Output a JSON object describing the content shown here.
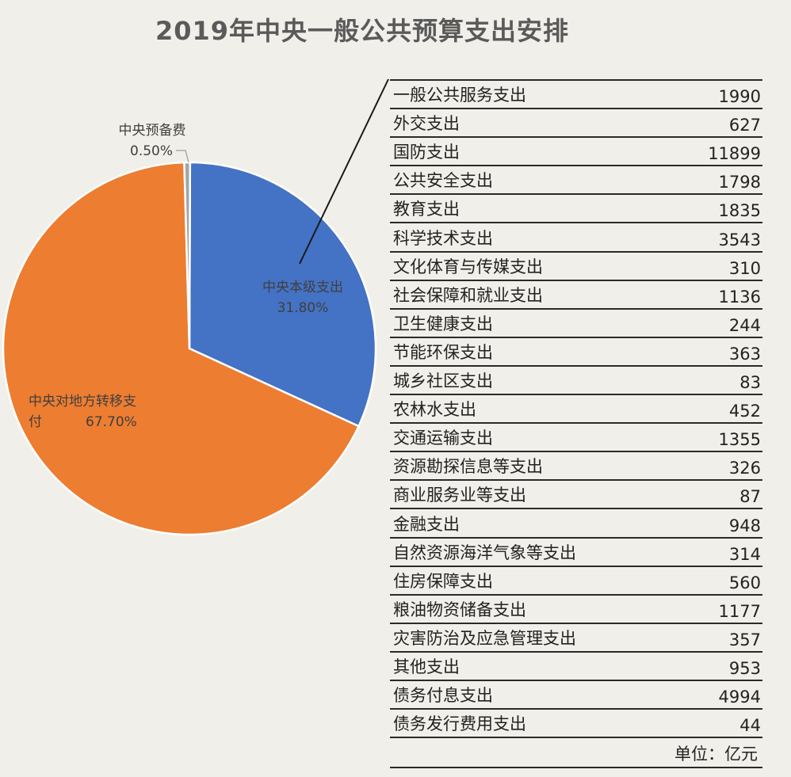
{
  "chart_data": [
    {
      "type": "pie",
      "title": "2019年中央一般公共预算支出安排",
      "slices": [
        {
          "label": "中央本级支出",
          "value": 31.8,
          "display": "31.80%",
          "color": "#4472c4"
        },
        {
          "label": "中央对地方转移支付",
          "value": 67.7,
          "display": "67.70%",
          "color": "#ed7d31"
        },
        {
          "label": "中央预备费",
          "value": 0.5,
          "display": "0.50%",
          "color": "#a5a5a5"
        }
      ]
    },
    {
      "type": "table",
      "unit_label": "单位：亿元",
      "rows": [
        {
          "name": "一般公共服务支出",
          "value": "1990"
        },
        {
          "name": "外交支出",
          "value": "627"
        },
        {
          "name": "国防支出",
          "value": "11899"
        },
        {
          "name": "公共安全支出",
          "value": "1798"
        },
        {
          "name": "教育支出",
          "value": "1835"
        },
        {
          "name": "科学技术支出",
          "value": "3543"
        },
        {
          "name": "文化体育与传媒支出",
          "value": "310"
        },
        {
          "name": "社会保障和就业支出",
          "value": "1136"
        },
        {
          "name": "卫生健康支出",
          "value": "244"
        },
        {
          "name": "节能环保支出",
          "value": "363"
        },
        {
          "name": "城乡社区支出",
          "value": "83"
        },
        {
          "name": "农林水支出",
          "value": "452"
        },
        {
          "name": "交通运输支出",
          "value": "1355"
        },
        {
          "name": "资源勘探信息等支出",
          "value": "326"
        },
        {
          "name": "商业服务业等支出",
          "value": "87"
        },
        {
          "name": "金融支出",
          "value": "948"
        },
        {
          "name": "自然资源海洋气象等支出",
          "value": "314"
        },
        {
          "name": "住房保障支出",
          "value": "560"
        },
        {
          "name": "粮油物资储备支出",
          "value": "1177"
        },
        {
          "name": "灾害防治及应急管理支出",
          "value": "357"
        },
        {
          "name": "其他支出",
          "value": "953"
        },
        {
          "name": "债务付息支出",
          "value": "4994"
        },
        {
          "name": "债务发行费用支出",
          "value": "44"
        }
      ]
    }
  ]
}
